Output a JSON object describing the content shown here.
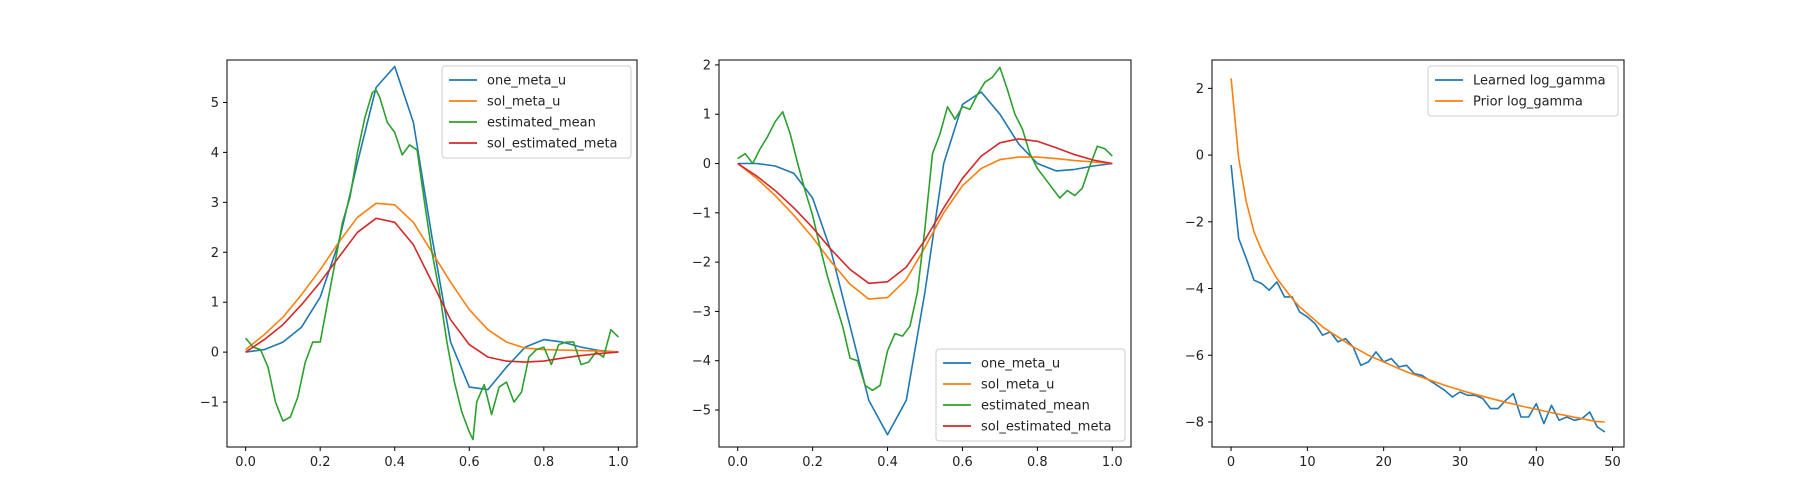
{
  "chart_data": [
    {
      "type": "line",
      "title": "",
      "xlabel": "",
      "ylabel": "",
      "xlim": [
        -0.05,
        1.05
      ],
      "ylim": [
        -1.9,
        5.85
      ],
      "xticks": [
        0.0,
        0.2,
        0.4,
        0.6,
        0.8,
        1.0
      ],
      "xtick_labels": [
        "0.0",
        "0.2",
        "0.4",
        "0.6",
        "0.8",
        "1.0"
      ],
      "yticks": [
        -1,
        0,
        1,
        2,
        3,
        4,
        5
      ],
      "ytick_labels": [
        "−1",
        "0",
        "1",
        "2",
        "3",
        "4",
        "5"
      ],
      "legend_position": "upper right",
      "series": [
        {
          "name": "one_meta_u",
          "color": "#1f77b4",
          "x": [
            0,
            0.05,
            0.1,
            0.15,
            0.2,
            0.25,
            0.3,
            0.35,
            0.4,
            0.45,
            0.5,
            0.55,
            0.6,
            0.65,
            0.7,
            0.75,
            0.8,
            0.85,
            0.9,
            0.95,
            1.0
          ],
          "y": [
            0,
            0.05,
            0.2,
            0.5,
            1.1,
            2.2,
            3.8,
            5.3,
            5.72,
            4.6,
            2.3,
            0.2,
            -0.7,
            -0.75,
            -0.3,
            0.1,
            0.25,
            0.2,
            0.1,
            0.03,
            0
          ]
        },
        {
          "name": "sol_meta_u",
          "color": "#ff7f0e",
          "x": [
            0,
            0.05,
            0.1,
            0.15,
            0.2,
            0.25,
            0.3,
            0.35,
            0.4,
            0.45,
            0.5,
            0.55,
            0.6,
            0.65,
            0.7,
            0.75,
            0.8,
            0.85,
            0.9,
            0.95,
            1.0
          ],
          "y": [
            0.05,
            0.35,
            0.7,
            1.15,
            1.65,
            2.2,
            2.7,
            2.98,
            2.95,
            2.6,
            2.0,
            1.4,
            0.85,
            0.45,
            0.2,
            0.08,
            0.05,
            0.04,
            0.03,
            0.02,
            0.0
          ]
        },
        {
          "name": "estimated_mean",
          "color": "#2ca02c",
          "x": [
            0,
            0.02,
            0.04,
            0.06,
            0.08,
            0.1,
            0.12,
            0.14,
            0.16,
            0.18,
            0.2,
            0.22,
            0.24,
            0.26,
            0.28,
            0.3,
            0.32,
            0.34,
            0.35,
            0.36,
            0.38,
            0.4,
            0.42,
            0.44,
            0.46,
            0.48,
            0.5,
            0.52,
            0.54,
            0.56,
            0.58,
            0.6,
            0.61,
            0.62,
            0.64,
            0.66,
            0.68,
            0.7,
            0.72,
            0.74,
            0.76,
            0.78,
            0.8,
            0.82,
            0.84,
            0.86,
            0.88,
            0.9,
            0.92,
            0.94,
            0.96,
            0.98,
            1.0
          ],
          "y": [
            0.28,
            0.1,
            0.05,
            -0.3,
            -1.0,
            -1.38,
            -1.3,
            -0.9,
            -0.2,
            0.2,
            0.2,
            1.0,
            1.8,
            2.6,
            3.1,
            4.0,
            4.7,
            5.2,
            5.25,
            5.1,
            4.6,
            4.4,
            3.95,
            4.15,
            4.05,
            3.0,
            2.0,
            1.2,
            0.2,
            -0.6,
            -1.2,
            -1.6,
            -1.75,
            -1.0,
            -0.65,
            -1.25,
            -0.7,
            -0.6,
            -1.0,
            -0.8,
            -0.1,
            0.05,
            0.1,
            -0.25,
            0.15,
            0.2,
            0.2,
            -0.25,
            -0.2,
            0.0,
            -0.1,
            0.45,
            0.3
          ]
        },
        {
          "name": "sol_estimated_meta",
          "color": "#d62728",
          "x": [
            0,
            0.05,
            0.1,
            0.15,
            0.2,
            0.25,
            0.3,
            0.35,
            0.4,
            0.45,
            0.5,
            0.55,
            0.6,
            0.65,
            0.7,
            0.75,
            0.8,
            0.85,
            0.9,
            0.95,
            1.0
          ],
          "y": [
            0,
            0.25,
            0.55,
            0.95,
            1.4,
            1.9,
            2.4,
            2.68,
            2.6,
            2.15,
            1.4,
            0.65,
            0.15,
            -0.1,
            -0.18,
            -0.2,
            -0.18,
            -0.12,
            -0.07,
            -0.03,
            0
          ]
        }
      ]
    },
    {
      "type": "line",
      "title": "",
      "xlabel": "",
      "ylabel": "",
      "xlim": [
        -0.05,
        1.05
      ],
      "ylim": [
        -5.75,
        2.1
      ],
      "xticks": [
        0.0,
        0.2,
        0.4,
        0.6,
        0.8,
        1.0
      ],
      "xtick_labels": [
        "0.0",
        "0.2",
        "0.4",
        "0.6",
        "0.8",
        "1.0"
      ],
      "yticks": [
        -5,
        -4,
        -3,
        -2,
        -1,
        0,
        1,
        2
      ],
      "ytick_labels": [
        "−5",
        "−4",
        "−3",
        "−2",
        "−1",
        "0",
        "1",
        "2"
      ],
      "legend_position": "lower right",
      "series": [
        {
          "name": "one_meta_u",
          "color": "#1f77b4",
          "x": [
            0,
            0.05,
            0.1,
            0.15,
            0.2,
            0.25,
            0.3,
            0.35,
            0.4,
            0.45,
            0.5,
            0.55,
            0.6,
            0.65,
            0.7,
            0.75,
            0.8,
            0.85,
            0.9,
            0.95,
            1.0
          ],
          "y": [
            0,
            0.0,
            -0.05,
            -0.2,
            -0.7,
            -1.8,
            -3.3,
            -4.8,
            -5.5,
            -4.8,
            -2.6,
            0.0,
            1.2,
            1.45,
            1.0,
            0.4,
            0.0,
            -0.15,
            -0.12,
            -0.05,
            0
          ]
        },
        {
          "name": "sol_meta_u",
          "color": "#ff7f0e",
          "x": [
            0,
            0.05,
            0.1,
            0.15,
            0.2,
            0.25,
            0.3,
            0.35,
            0.4,
            0.45,
            0.5,
            0.55,
            0.6,
            0.65,
            0.7,
            0.75,
            0.8,
            0.85,
            0.9,
            0.95,
            1.0
          ],
          "y": [
            0,
            -0.3,
            -0.65,
            -1.05,
            -1.5,
            -2.0,
            -2.45,
            -2.75,
            -2.72,
            -2.35,
            -1.7,
            -1.0,
            -0.45,
            -0.1,
            0.08,
            0.13,
            0.13,
            0.1,
            0.06,
            0.03,
            0
          ]
        },
        {
          "name": "estimated_mean",
          "color": "#2ca02c",
          "x": [
            0,
            0.02,
            0.04,
            0.06,
            0.08,
            0.1,
            0.12,
            0.14,
            0.16,
            0.18,
            0.2,
            0.22,
            0.24,
            0.26,
            0.28,
            0.3,
            0.32,
            0.34,
            0.36,
            0.38,
            0.4,
            0.42,
            0.44,
            0.46,
            0.48,
            0.5,
            0.52,
            0.54,
            0.56,
            0.58,
            0.6,
            0.62,
            0.64,
            0.66,
            0.68,
            0.7,
            0.72,
            0.74,
            0.76,
            0.78,
            0.8,
            0.82,
            0.84,
            0.86,
            0.88,
            0.9,
            0.92,
            0.94,
            0.96,
            0.98,
            1.0
          ],
          "y": [
            0.1,
            0.2,
            0.0,
            0.3,
            0.55,
            0.85,
            1.05,
            0.6,
            0.0,
            -0.55,
            -1.05,
            -1.7,
            -2.3,
            -2.8,
            -3.3,
            -3.95,
            -4.0,
            -4.5,
            -4.6,
            -4.5,
            -3.8,
            -3.45,
            -3.5,
            -3.3,
            -2.6,
            -1.3,
            0.2,
            0.6,
            1.15,
            0.9,
            1.15,
            1.1,
            1.4,
            1.65,
            1.75,
            1.95,
            1.5,
            1.0,
            0.7,
            0.2,
            -0.1,
            -0.3,
            -0.5,
            -0.7,
            -0.55,
            -0.65,
            -0.5,
            -0.05,
            0.35,
            0.3,
            0.15
          ]
        },
        {
          "name": "sol_estimated_meta",
          "color": "#d62728",
          "x": [
            0,
            0.05,
            0.1,
            0.15,
            0.2,
            0.25,
            0.3,
            0.35,
            0.4,
            0.45,
            0.5,
            0.55,
            0.6,
            0.65,
            0.7,
            0.75,
            0.8,
            0.85,
            0.9,
            0.95,
            1.0
          ],
          "y": [
            0,
            -0.25,
            -0.55,
            -0.9,
            -1.3,
            -1.75,
            -2.15,
            -2.43,
            -2.4,
            -2.1,
            -1.55,
            -0.9,
            -0.3,
            0.15,
            0.42,
            0.5,
            0.45,
            0.32,
            0.18,
            0.07,
            0
          ]
        }
      ]
    },
    {
      "type": "line",
      "title": "",
      "xlabel": "",
      "ylabel": "",
      "xlim": [
        -2.5,
        51.5
      ],
      "ylim": [
        -8.75,
        2.85
      ],
      "xticks": [
        0,
        10,
        20,
        30,
        40,
        50
      ],
      "xtick_labels": [
        "0",
        "10",
        "20",
        "30",
        "40",
        "50"
      ],
      "yticks": [
        -8,
        -6,
        -4,
        -2,
        0,
        2
      ],
      "ytick_labels": [
        "−8",
        "−6",
        "−4",
        "−2",
        "0",
        "2"
      ],
      "legend_position": "upper right",
      "series": [
        {
          "name": "Learned log_gamma",
          "color": "#1f77b4",
          "x": [
            0,
            1,
            2,
            3,
            4,
            5,
            6,
            7,
            8,
            9,
            10,
            11,
            12,
            13,
            14,
            15,
            16,
            17,
            18,
            19,
            20,
            21,
            22,
            23,
            24,
            25,
            26,
            27,
            28,
            29,
            30,
            31,
            32,
            33,
            34,
            35,
            36,
            37,
            38,
            39,
            40,
            41,
            42,
            43,
            44,
            45,
            46,
            47,
            48,
            49
          ],
          "y": [
            -0.3,
            -2.5,
            -3.1,
            -3.75,
            -3.85,
            -4.05,
            -3.8,
            -4.25,
            -4.25,
            -4.7,
            -4.85,
            -5.05,
            -5.4,
            -5.3,
            -5.6,
            -5.5,
            -5.75,
            -6.3,
            -6.2,
            -5.9,
            -6.2,
            -6.1,
            -6.35,
            -6.3,
            -6.55,
            -6.6,
            -6.75,
            -6.9,
            -7.05,
            -7.25,
            -7.1,
            -7.2,
            -7.2,
            -7.3,
            -7.6,
            -7.6,
            -7.35,
            -7.15,
            -7.85,
            -7.85,
            -7.45,
            -8.05,
            -7.5,
            -7.95,
            -7.85,
            -7.95,
            -7.9,
            -7.7,
            -8.15,
            -8.3
          ]
        },
        {
          "name": "Prior log_gamma",
          "color": "#ff7f0e",
          "x": [
            0,
            1,
            2,
            3,
            4,
            5,
            6,
            7,
            8,
            9,
            10,
            11,
            12,
            13,
            14,
            15,
            16,
            17,
            18,
            19,
            20,
            21,
            22,
            23,
            24,
            25,
            26,
            27,
            28,
            29,
            30,
            31,
            32,
            33,
            34,
            35,
            36,
            37,
            38,
            39,
            40,
            41,
            42,
            43,
            44,
            45,
            46,
            47,
            48,
            49
          ],
          "y": [
            2.3,
            -0.1,
            -1.4,
            -2.3,
            -2.85,
            -3.3,
            -3.7,
            -4.0,
            -4.3,
            -4.55,
            -4.75,
            -4.95,
            -5.15,
            -5.3,
            -5.45,
            -5.6,
            -5.75,
            -5.87,
            -6.0,
            -6.1,
            -6.2,
            -6.3,
            -6.4,
            -6.5,
            -6.58,
            -6.66,
            -6.74,
            -6.82,
            -6.9,
            -6.97,
            -7.04,
            -7.11,
            -7.17,
            -7.23,
            -7.29,
            -7.35,
            -7.41,
            -7.46,
            -7.52,
            -7.57,
            -7.62,
            -7.67,
            -7.72,
            -7.77,
            -7.81,
            -7.86,
            -7.9,
            -7.95,
            -7.99,
            -8.0
          ]
        }
      ]
    }
  ],
  "colors": {
    "axes": "#000000",
    "background": "#ffffff",
    "legend_border": "#cccccc"
  }
}
